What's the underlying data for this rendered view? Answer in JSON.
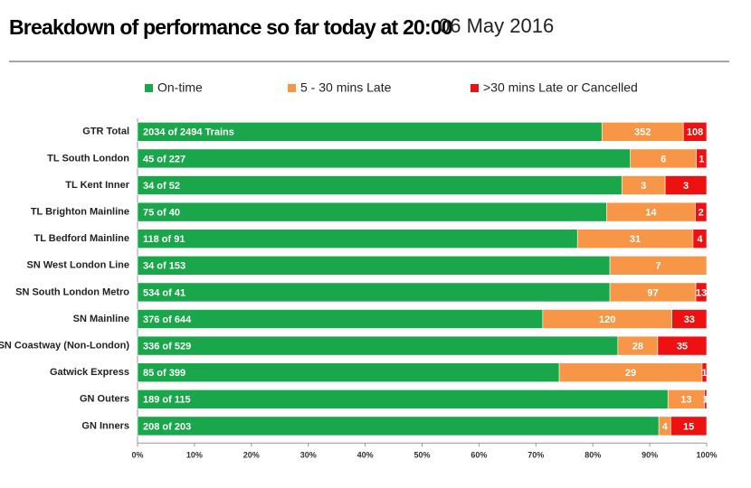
{
  "chart_data": {
    "type": "stacked_bar_horizontal",
    "title": "Breakdown of performance so far today at 20:00",
    "subtitle": "06 May 2016",
    "categories": [
      "GTR Total",
      "TL South London",
      "TL Kent Inner",
      "TL Brighton Mainline",
      "TL Bedford Mainline",
      "SN West London Line",
      "SN South London Metro",
      "SN Mainline",
      "SN Coastway (Non-London)",
      "Gatwick Express",
      "GN Outers",
      "GN Inners"
    ],
    "series": [
      {
        "name": "On-time",
        "color": "#1aa64a",
        "values": [
          81.6,
          86.6,
          85.1,
          82.4,
          77.3,
          83.0,
          83.0,
          71.2,
          84.4,
          74.1,
          93.2,
          91.6
        ],
        "labels": [
          "2034 of 2494 Trains",
          "45 of 227",
          "34 of 52",
          "75 of 40",
          "118 of 91",
          "34 of 153",
          "534 of 41",
          "376 of 644",
          "336 of 529",
          "85 of 399",
          "189 of 115",
          "208 of 203"
        ]
      },
      {
        "name": "5 - 30 mins Late",
        "color": "#f79646",
        "values": [
          14.3,
          11.6,
          7.6,
          15.6,
          20.3,
          17.0,
          15.1,
          22.7,
          7.0,
          25.1,
          6.4,
          2.1
        ],
        "labels": [
          "352",
          "6",
          "3",
          "14",
          "31",
          "7",
          "97",
          "120",
          "28",
          "29",
          "13",
          "4"
        ]
      },
      {
        "name": ">30 mins Late or Cancelled",
        "color": "#ee1111",
        "values": [
          4.1,
          1.8,
          7.3,
          2.0,
          2.4,
          null,
          1.9,
          6.1,
          8.6,
          0.8,
          0.4,
          6.3
        ],
        "labels": [
          "108",
          "1",
          "3",
          "2",
          "4",
          null,
          "13",
          "33",
          "35",
          "1",
          "1",
          "15"
        ]
      }
    ],
    "xlim": [
      0,
      100
    ],
    "xticks": [
      {
        "value": 0,
        "label": "0%"
      },
      {
        "value": 10,
        "label": "10%"
      },
      {
        "value": 20,
        "label": "20%"
      },
      {
        "value": 30,
        "label": "30%"
      },
      {
        "value": 40,
        "label": "40%"
      },
      {
        "value": 50,
        "label": "50%"
      },
      {
        "value": 60,
        "label": "60%"
      },
      {
        "value": 70,
        "label": "70%"
      },
      {
        "value": 80,
        "label": "80%"
      },
      {
        "value": 90,
        "label": "90%"
      },
      {
        "value": 100,
        "label": "100%"
      }
    ],
    "legend": "top"
  }
}
